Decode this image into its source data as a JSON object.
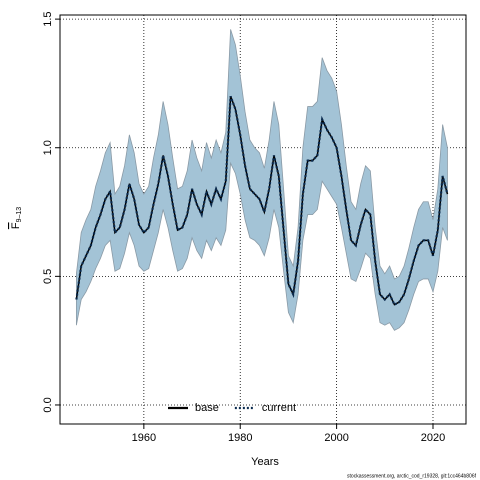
{
  "chart_data": {
    "type": "line",
    "x_label": "Years",
    "y_label": "F",
    "y_label_sub": "9–13",
    "footer": "stockassessment.org, arctic_cod_r19328, git:1cc464b806f",
    "x": [
      1946,
      1947,
      1948,
      1949,
      1950,
      1951,
      1952,
      1953,
      1954,
      1955,
      1956,
      1957,
      1958,
      1959,
      1960,
      1961,
      1962,
      1963,
      1964,
      1965,
      1966,
      1967,
      1968,
      1969,
      1970,
      1971,
      1972,
      1973,
      1974,
      1975,
      1976,
      1977,
      1978,
      1979,
      1980,
      1981,
      1982,
      1983,
      1984,
      1985,
      1986,
      1987,
      1988,
      1989,
      1990,
      1991,
      1992,
      1993,
      1994,
      1995,
      1996,
      1997,
      1998,
      1999,
      2000,
      2001,
      2002,
      2003,
      2004,
      2005,
      2006,
      2007,
      2008,
      2009,
      2010,
      2011,
      2012,
      2013,
      2014,
      2015,
      2016,
      2017,
      2018,
      2019,
      2020,
      2021,
      2022,
      2023
    ],
    "series": [
      {
        "name": "base",
        "color": "#000000",
        "style": "solid",
        "values": [
          0.41,
          0.54,
          0.58,
          0.62,
          0.69,
          0.74,
          0.8,
          0.83,
          0.67,
          0.69,
          0.76,
          0.86,
          0.8,
          0.7,
          0.67,
          0.69,
          0.78,
          0.86,
          0.97,
          0.89,
          0.78,
          0.68,
          0.69,
          0.74,
          0.84,
          0.78,
          0.74,
          0.83,
          0.78,
          0.84,
          0.8,
          0.87,
          1.2,
          1.15,
          1.05,
          0.93,
          0.84,
          0.82,
          0.8,
          0.75,
          0.84,
          0.97,
          0.89,
          0.68,
          0.47,
          0.43,
          0.56,
          0.82,
          0.95,
          0.95,
          0.97,
          1.11,
          1.07,
          1.04,
          1.0,
          0.89,
          0.76,
          0.64,
          0.62,
          0.7,
          0.76,
          0.74,
          0.56,
          0.43,
          0.41,
          0.43,
          0.39,
          0.4,
          0.43,
          0.49,
          0.56,
          0.62,
          0.64,
          0.64,
          0.58,
          0.68,
          0.89,
          0.82
        ]
      },
      {
        "name": "current",
        "color": "#0b2b4f",
        "style": "dotted",
        "band_color": "#a3c3d6",
        "values": [
          0.41,
          0.54,
          0.58,
          0.62,
          0.69,
          0.74,
          0.8,
          0.83,
          0.67,
          0.69,
          0.76,
          0.86,
          0.8,
          0.7,
          0.67,
          0.69,
          0.78,
          0.86,
          0.97,
          0.89,
          0.78,
          0.68,
          0.69,
          0.74,
          0.84,
          0.78,
          0.74,
          0.83,
          0.78,
          0.84,
          0.8,
          0.87,
          1.2,
          1.15,
          1.05,
          0.93,
          0.84,
          0.82,
          0.8,
          0.75,
          0.84,
          0.97,
          0.89,
          0.68,
          0.47,
          0.43,
          0.56,
          0.82,
          0.95,
          0.95,
          0.97,
          1.11,
          1.07,
          1.04,
          1.0,
          0.89,
          0.76,
          0.64,
          0.62,
          0.7,
          0.76,
          0.74,
          0.56,
          0.43,
          0.41,
          0.43,
          0.39,
          0.4,
          0.43,
          0.49,
          0.56,
          0.62,
          0.64,
          0.64,
          0.58,
          0.68,
          0.89,
          0.82
        ],
        "upper": [
          0.51,
          0.67,
          0.72,
          0.76,
          0.85,
          0.91,
          0.98,
          1.02,
          0.82,
          0.85,
          0.93,
          1.05,
          0.98,
          0.86,
          0.82,
          0.85,
          0.96,
          1.05,
          1.18,
          1.09,
          0.96,
          0.84,
          0.85,
          0.91,
          1.03,
          0.96,
          0.91,
          1.02,
          0.96,
          1.03,
          0.98,
          1.06,
          1.46,
          1.4,
          1.28,
          1.14,
          1.03,
          1.0,
          0.98,
          0.92,
          1.03,
          1.18,
          1.09,
          0.84,
          0.58,
          0.54,
          0.69,
          1.0,
          1.16,
          1.16,
          1.18,
          1.35,
          1.3,
          1.27,
          1.22,
          1.09,
          0.93,
          0.79,
          0.76,
          0.86,
          0.93,
          0.91,
          0.69,
          0.54,
          0.51,
          0.54,
          0.49,
          0.5,
          0.54,
          0.61,
          0.69,
          0.76,
          0.79,
          0.79,
          0.72,
          0.84,
          1.09,
          1.0
        ],
        "lower": [
          0.31,
          0.41,
          0.44,
          0.48,
          0.53,
          0.57,
          0.62,
          0.64,
          0.52,
          0.53,
          0.59,
          0.67,
          0.62,
          0.54,
          0.52,
          0.53,
          0.6,
          0.67,
          0.76,
          0.69,
          0.6,
          0.52,
          0.53,
          0.57,
          0.65,
          0.6,
          0.57,
          0.64,
          0.6,
          0.65,
          0.62,
          0.68,
          0.94,
          0.9,
          0.82,
          0.72,
          0.65,
          0.64,
          0.62,
          0.58,
          0.65,
          0.76,
          0.69,
          0.52,
          0.36,
          0.32,
          0.43,
          0.64,
          0.74,
          0.74,
          0.76,
          0.87,
          0.84,
          0.81,
          0.78,
          0.69,
          0.59,
          0.49,
          0.48,
          0.53,
          0.59,
          0.57,
          0.43,
          0.32,
          0.31,
          0.32,
          0.29,
          0.3,
          0.32,
          0.37,
          0.43,
          0.48,
          0.49,
          0.49,
          0.44,
          0.52,
          0.69,
          0.64
        ]
      }
    ],
    "xlim": [
      1942.6,
      2026.85
    ],
    "ylim": [
      -0.074,
      1.516
    ],
    "xticks": [
      1960,
      1980,
      2000,
      2020
    ],
    "yticks": [
      {
        "value": 0,
        "label": "0.0"
      },
      0.5,
      {
        "value": 1,
        "label": "1.0"
      },
      {
        "value": 1.5,
        "label": "1.5"
      }
    ],
    "grid": true,
    "legend": "bottom"
  }
}
